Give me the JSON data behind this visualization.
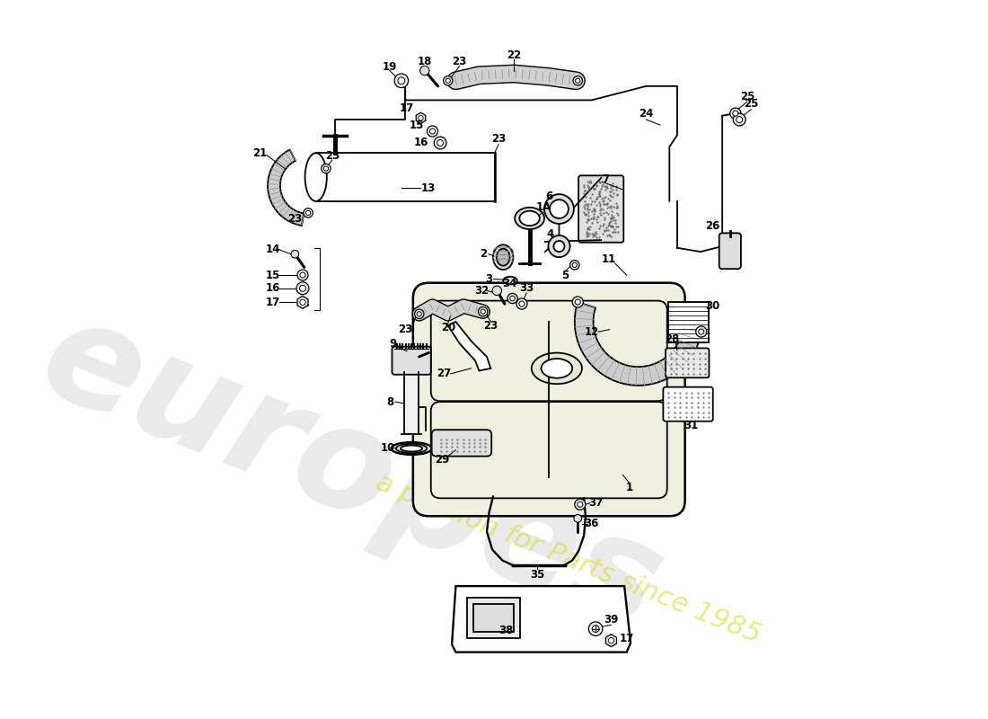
{
  "bg_color": "#ffffff",
  "line_color": "#000000",
  "wm1_text": "europes",
  "wm2_text": "a passion for Parts since 1985",
  "wm1_color": "#cccccc",
  "wm2_color": "#dddd44",
  "tank_fc": "#f0f0e0",
  "hose_fc": "#cccccc",
  "filter_fc": "#e8e8e8"
}
